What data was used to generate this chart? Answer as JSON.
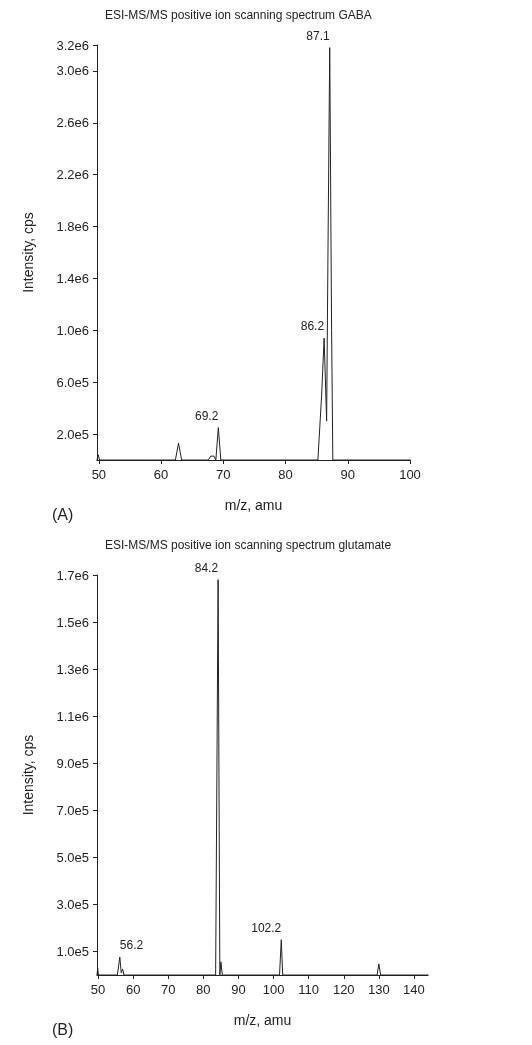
{
  "chart_data": [
    {
      "type": "line",
      "title": "ESI-MS/MS positive ion scanning spectrum GABA",
      "xlabel": "m/z, amu",
      "ylabel": "Intensity, cps",
      "grid": false,
      "marker": "none",
      "line_style": "solid",
      "xlim": [
        49.7,
        100
      ],
      "xticks": [
        50,
        60,
        70,
        80,
        90,
        100
      ],
      "ylim": [
        0,
        3200000.0
      ],
      "yticks": [
        {
          "value": 200000,
          "label": "2.0e5"
        },
        {
          "value": 600000,
          "label": "6.0e5"
        },
        {
          "value": 1000000,
          "label": "1.0e6"
        },
        {
          "value": 1400000,
          "label": "1.4e6"
        },
        {
          "value": 1800000,
          "label": "1.8e6"
        },
        {
          "value": 2200000,
          "label": "2.2e6"
        },
        {
          "value": 2600000,
          "label": "2.6e6"
        },
        {
          "value": 3000000,
          "label": "3.0e6"
        },
        {
          "value": 3200000,
          "label": "3.2e6"
        }
      ],
      "series": [
        {
          "color": "#222222",
          "x": [
            49.7,
            49.9,
            50.1,
            58,
            62.3,
            62.8,
            63.3,
            67.6,
            68,
            68.5,
            68.8,
            69.2,
            69.6,
            78,
            85.2,
            85.8,
            86.2,
            86.6,
            86.8,
            87.1,
            87.4,
            87.6,
            100
          ],
          "values": [
            0,
            40000,
            0,
            0,
            0,
            130000,
            0,
            0,
            30000,
            30000,
            0,
            250000,
            0,
            0,
            0,
            500000,
            940000,
            300000,
            1500000,
            3180000,
            1000000,
            0,
            0
          ]
        }
      ],
      "annotations": [
        "(A)",
        {
          "text": "87.1",
          "x": 87.1,
          "y": 3180000
        },
        {
          "text": "86.2",
          "x": 86.2,
          "y": 940000
        },
        {
          "text": "69.2",
          "x": 69.2,
          "y": 250000
        }
      ]
    },
    {
      "type": "line",
      "title": "ESI-MS/MS positive ion scanning spectrum glutamate",
      "xlabel": "m/z, amu",
      "ylabel": "Intensity, cps",
      "grid": false,
      "marker": "none",
      "line_style": "solid",
      "xlim": [
        49.7,
        144
      ],
      "xticks": [
        50,
        60,
        70,
        80,
        90,
        100,
        110,
        120,
        130,
        140
      ],
      "ylim": [
        0,
        1700000.0
      ],
      "yticks": [
        {
          "value": 100000,
          "label": "1.0e5"
        },
        {
          "value": 300000,
          "label": "3.0e5"
        },
        {
          "value": 500000,
          "label": "5.0e5"
        },
        {
          "value": 700000,
          "label": "7.0e5"
        },
        {
          "value": 900000,
          "label": "9.0e5"
        },
        {
          "value": 1100000,
          "label": "1.1e6"
        },
        {
          "value": 1300000,
          "label": "1.3e6"
        },
        {
          "value": 1500000,
          "label": "1.5e6"
        },
        {
          "value": 1700000,
          "label": "1.7e6"
        }
      ],
      "series": [
        {
          "color": "#222222",
          "x": [
            49.7,
            49.9,
            50.1,
            55.5,
            56.2,
            56.6,
            57,
            57.4,
            83.5,
            84.2,
            84.7,
            85,
            85.4,
            101.7,
            102.2,
            102.6,
            129.5,
            130,
            130.5,
            144
          ],
          "values": [
            0,
            30000,
            0,
            0,
            76000,
            10000,
            25000,
            0,
            0,
            1680000,
            0,
            56000,
            0,
            0,
            150000,
            0,
            0,
            47000,
            0,
            0
          ]
        }
      ],
      "annotations": [
        "(B)",
        {
          "text": "84.2",
          "x": 84.2,
          "y": 1680000
        },
        {
          "text": "56.2",
          "x": 56.2,
          "y": 76000
        },
        {
          "text": "102.2",
          "x": 102.2,
          "y": 150000
        }
      ]
    }
  ]
}
